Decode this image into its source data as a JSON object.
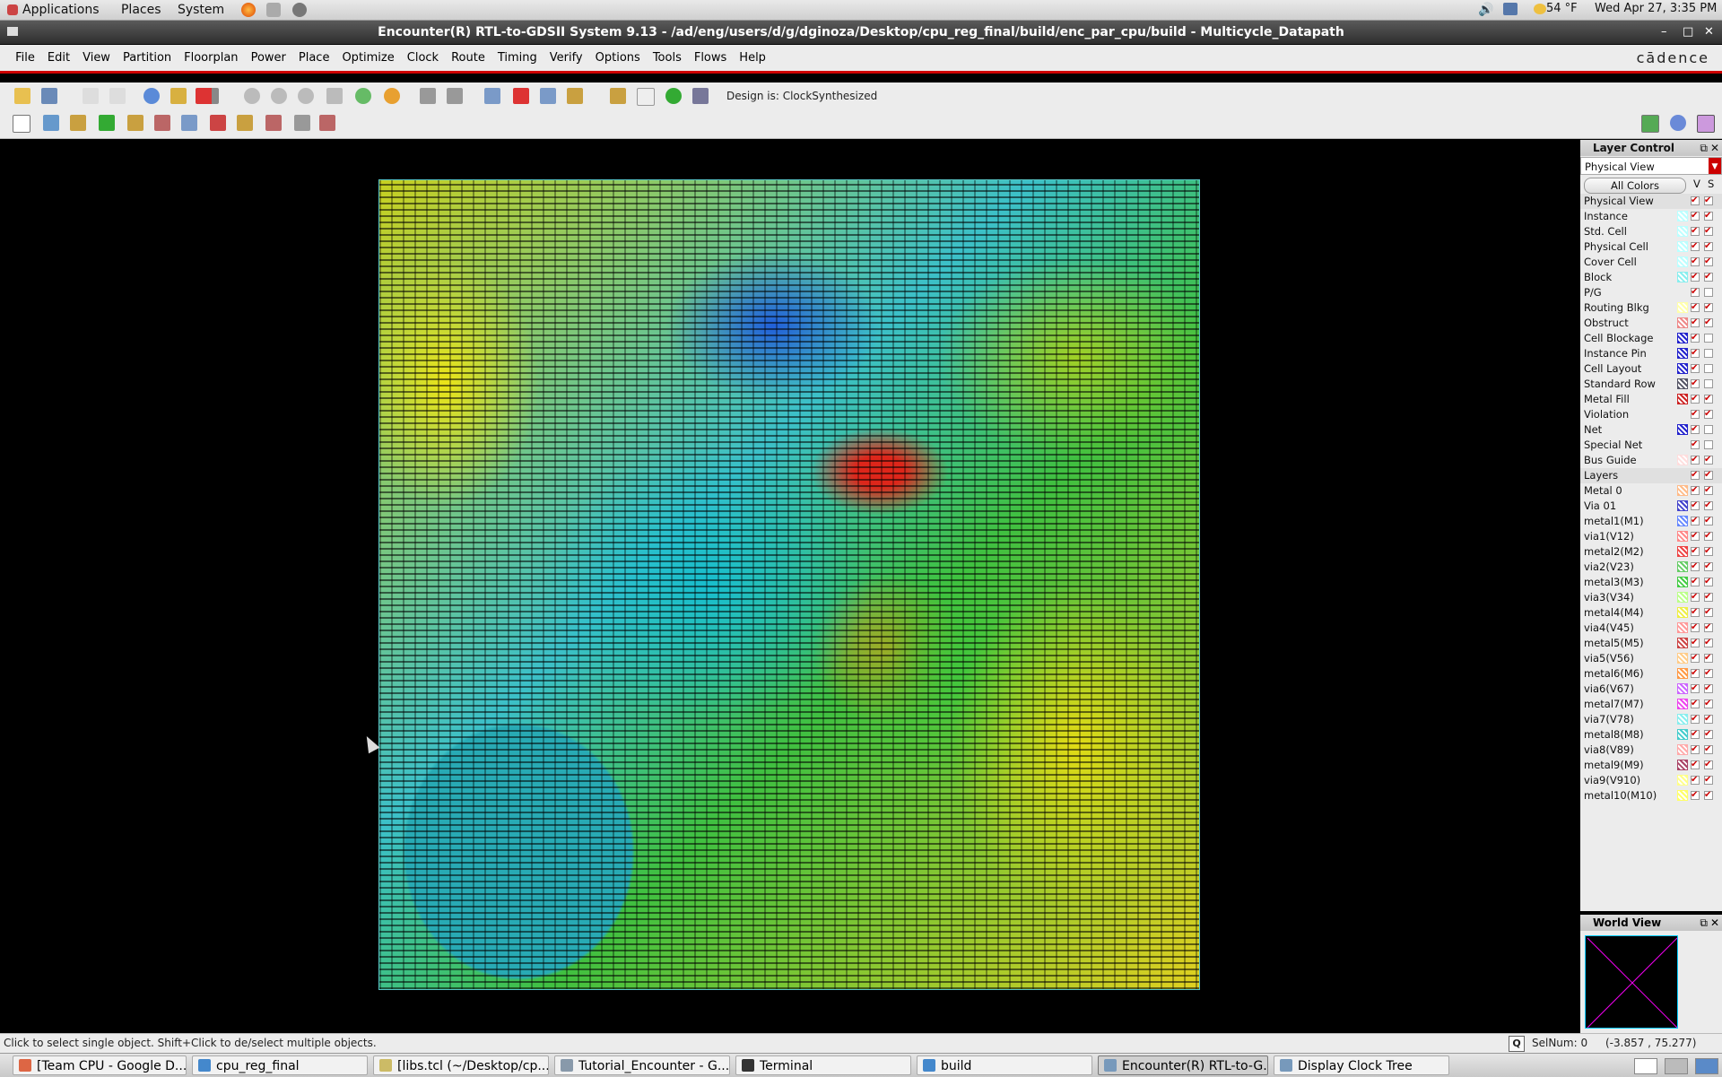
{
  "top_panel": {
    "menus": [
      "Applications",
      "Places",
      "System"
    ],
    "weather": "54 °F",
    "clock": "Wed Apr 27,  3:35 PM"
  },
  "window": {
    "title": "Encounter(R) RTL-to-GDSII System 9.13 - /ad/eng/users/d/g/dginoza/Desktop/cpu_reg_final/build/enc_par_cpu/build - Multicycle_Datapath",
    "controls": [
      "–",
      "□",
      "✕"
    ]
  },
  "menubar": {
    "items": [
      "File",
      "Edit",
      "View",
      "Partition",
      "Floorplan",
      "Power",
      "Place",
      "Optimize",
      "Clock",
      "Route",
      "Timing",
      "Verify",
      "Options",
      "Tools",
      "Flows",
      "Help"
    ],
    "logo": "cādence"
  },
  "toolbar": {
    "design_status": "Design is: ClockSynthesized"
  },
  "layer_control": {
    "title": "Layer Control",
    "view_select": "Physical View",
    "all_colors": "All Colors",
    "col_v": "V",
    "col_s": "S",
    "rows": [
      {
        "label": "Physical View",
        "swatch": "",
        "v": true,
        "s": true,
        "group": true
      },
      {
        "label": "Instance",
        "swatch": "#bff",
        "v": true,
        "s": true
      },
      {
        "label": "Std. Cell",
        "swatch": "#bff",
        "v": true,
        "s": true
      },
      {
        "label": "Physical Cell",
        "swatch": "#bff",
        "v": true,
        "s": true
      },
      {
        "label": "Cover Cell",
        "swatch": "#bff",
        "v": true,
        "s": true
      },
      {
        "label": "Block",
        "swatch": "#8ee",
        "v": true,
        "s": true
      },
      {
        "label": "P/G",
        "swatch": "",
        "v": true,
        "s": false
      },
      {
        "label": "Routing Blkg",
        "swatch": "#ffa",
        "v": true,
        "s": true
      },
      {
        "label": "Obstruct",
        "swatch": "#e88",
        "v": true,
        "s": true
      },
      {
        "label": "Cell Blockage",
        "swatch": "#22c",
        "v": true,
        "s": false
      },
      {
        "label": "Instance Pin",
        "swatch": "#22c",
        "v": true,
        "s": false
      },
      {
        "label": "Cell Layout",
        "swatch": "#22c",
        "v": true,
        "s": false
      },
      {
        "label": "Standard Row",
        "swatch": "#556",
        "v": true,
        "s": false
      },
      {
        "label": "Metal Fill",
        "swatch": "#c22",
        "v": true,
        "s": true
      },
      {
        "label": "Violation",
        "swatch": "",
        "v": true,
        "s": true
      },
      {
        "label": "Net",
        "swatch": "#22c",
        "v": true,
        "s": false
      },
      {
        "label": "Special Net",
        "swatch": "",
        "v": true,
        "s": false
      },
      {
        "label": "Bus Guide",
        "swatch": "#fdd",
        "v": true,
        "s": true
      },
      {
        "label": "Layers",
        "swatch": "",
        "v": true,
        "s": true,
        "group": true
      },
      {
        "label": "Metal 0",
        "swatch": "#fb8",
        "v": true,
        "s": true
      },
      {
        "label": "Via 01",
        "swatch": "#44c",
        "v": true,
        "s": true
      },
      {
        "label": "metal1(M1)",
        "swatch": "#68f",
        "v": true,
        "s": true
      },
      {
        "label": "via1(V12)",
        "swatch": "#f88",
        "v": true,
        "s": true
      },
      {
        "label": "metal2(M2)",
        "swatch": "#e44",
        "v": true,
        "s": true
      },
      {
        "label": "via2(V23)",
        "swatch": "#6c6",
        "v": true,
        "s": true
      },
      {
        "label": "metal3(M3)",
        "swatch": "#4c4",
        "v": true,
        "s": true
      },
      {
        "label": "via3(V34)",
        "swatch": "#bf8",
        "v": true,
        "s": true
      },
      {
        "label": "metal4(M4)",
        "swatch": "#ee4",
        "v": true,
        "s": true
      },
      {
        "label": "via4(V45)",
        "swatch": "#f99",
        "v": true,
        "s": true
      },
      {
        "label": "metal5(M5)",
        "swatch": "#c44",
        "v": true,
        "s": true
      },
      {
        "label": "via5(V56)",
        "swatch": "#fc8",
        "v": true,
        "s": true
      },
      {
        "label": "metal6(M6)",
        "swatch": "#f94",
        "v": true,
        "s": true
      },
      {
        "label": "via6(V67)",
        "swatch": "#c6f",
        "v": true,
        "s": true
      },
      {
        "label": "metal7(M7)",
        "swatch": "#e4e",
        "v": true,
        "s": true
      },
      {
        "label": "via7(V78)",
        "swatch": "#8ee",
        "v": true,
        "s": true
      },
      {
        "label": "metal8(M8)",
        "swatch": "#4cc",
        "v": true,
        "s": true
      },
      {
        "label": "via8(V89)",
        "swatch": "#faa",
        "v": true,
        "s": true
      },
      {
        "label": "metal9(M9)",
        "swatch": "#a46",
        "v": true,
        "s": true
      },
      {
        "label": "via9(V910)",
        "swatch": "#ff8",
        "v": true,
        "s": true
      },
      {
        "label": "metal10(M10)",
        "swatch": "#ff6",
        "v": true,
        "s": true
      }
    ]
  },
  "world_view": {
    "title": "World View"
  },
  "statusbar": {
    "hint": "Click to select single object. Shift+Click to de/select multiple objects.",
    "q_button": "Q",
    "selnum": "SelNum: 0",
    "coords": "(-3.857 , 75.277)"
  },
  "taskbar": {
    "tasks": [
      {
        "label": "[Team CPU - Google D...",
        "icon": "#d64"
      },
      {
        "label": "cpu_reg_final",
        "icon": "#48c"
      },
      {
        "label": "[libs.tcl (~/Desktop/cp...",
        "icon": "#cb6"
      },
      {
        "label": "Tutorial_Encounter - G...",
        "icon": "#89a"
      },
      {
        "label": "Terminal",
        "icon": "#333"
      },
      {
        "label": "build",
        "icon": "#48c"
      },
      {
        "label": "Encounter(R) RTL-to-G...",
        "icon": "#79b",
        "active": true
      },
      {
        "label": "Display Clock Tree",
        "icon": "#79b"
      }
    ]
  }
}
